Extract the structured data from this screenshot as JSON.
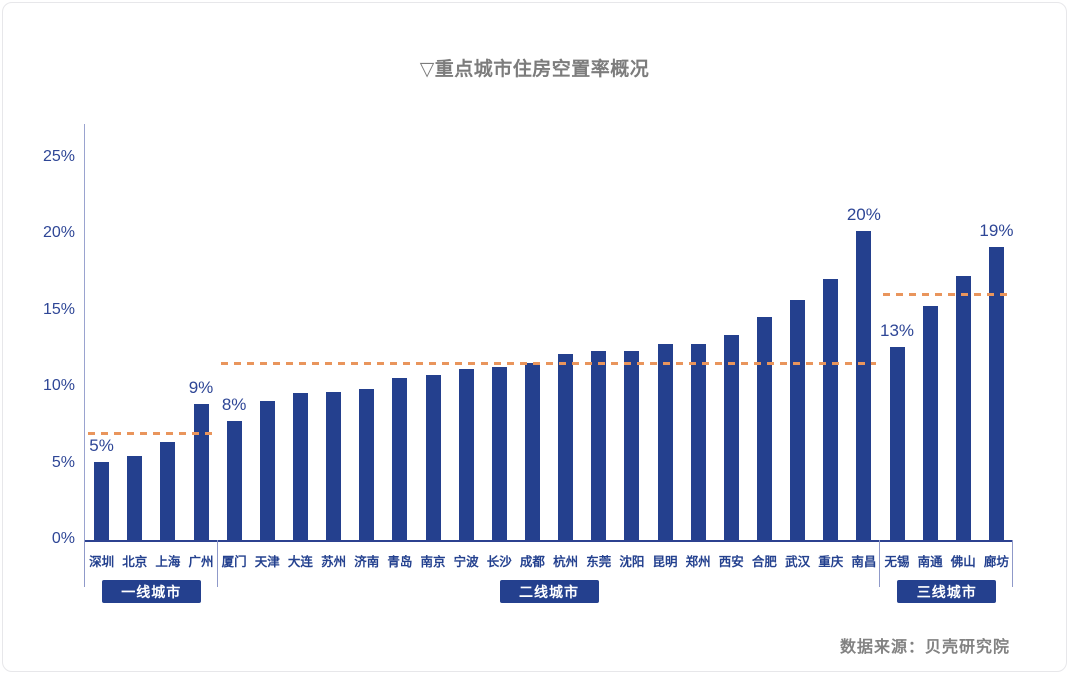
{
  "chart_data": {
    "type": "bar",
    "title": "▽重点城市住房空置率概况",
    "source": "数据来源：贝壳研究院",
    "unit": "%",
    "ylim": [
      0,
      25
    ],
    "y_ticks": [
      "0%",
      "5%",
      "10%",
      "15%",
      "20%",
      "25%"
    ],
    "grid": false,
    "legend": null,
    "bar_color": "#24408e",
    "average_line_color": "#e9955c",
    "axis_label_color": "#2e4696",
    "groups": [
      {
        "label": "一线城市",
        "average": 7.0,
        "cities": [
          {
            "name": "深圳",
            "value": 5.1,
            "label": "5%"
          },
          {
            "name": "北京",
            "value": 5.5
          },
          {
            "name": "上海",
            "value": 6.4
          },
          {
            "name": "广州",
            "value": 8.9,
            "label": "9%"
          }
        ]
      },
      {
        "label": "二线城市",
        "average": 11.6,
        "cities": [
          {
            "name": "厦门",
            "value": 7.8,
            "label": "8%"
          },
          {
            "name": "天津",
            "value": 9.1
          },
          {
            "name": "大连",
            "value": 9.6
          },
          {
            "name": "苏州",
            "value": 9.7
          },
          {
            "name": "济南",
            "value": 9.9
          },
          {
            "name": "青岛",
            "value": 10.6
          },
          {
            "name": "南京",
            "value": 10.8
          },
          {
            "name": "宁波",
            "value": 11.2
          },
          {
            "name": "长沙",
            "value": 11.3
          },
          {
            "name": "成都",
            "value": 11.6
          },
          {
            "name": "杭州",
            "value": 12.2
          },
          {
            "name": "东莞",
            "value": 12.4
          },
          {
            "name": "沈阳",
            "value": 12.4
          },
          {
            "name": "昆明",
            "value": 12.8
          },
          {
            "name": "郑州",
            "value": 12.8
          },
          {
            "name": "西安",
            "value": 13.4
          },
          {
            "name": "合肥",
            "value": 14.6
          },
          {
            "name": "武汉",
            "value": 15.7
          },
          {
            "name": "重庆",
            "value": 17.1
          },
          {
            "name": "南昌",
            "value": 20.2,
            "label": "20%"
          }
        ]
      },
      {
        "label": "三线城市",
        "average": 16.1,
        "cities": [
          {
            "name": "无锡",
            "value": 12.6,
            "label": "13%"
          },
          {
            "name": "南通",
            "value": 15.3
          },
          {
            "name": "佛山",
            "value": 17.3
          },
          {
            "name": "廊坊",
            "value": 19.2,
            "label": "19%"
          }
        ]
      }
    ]
  }
}
